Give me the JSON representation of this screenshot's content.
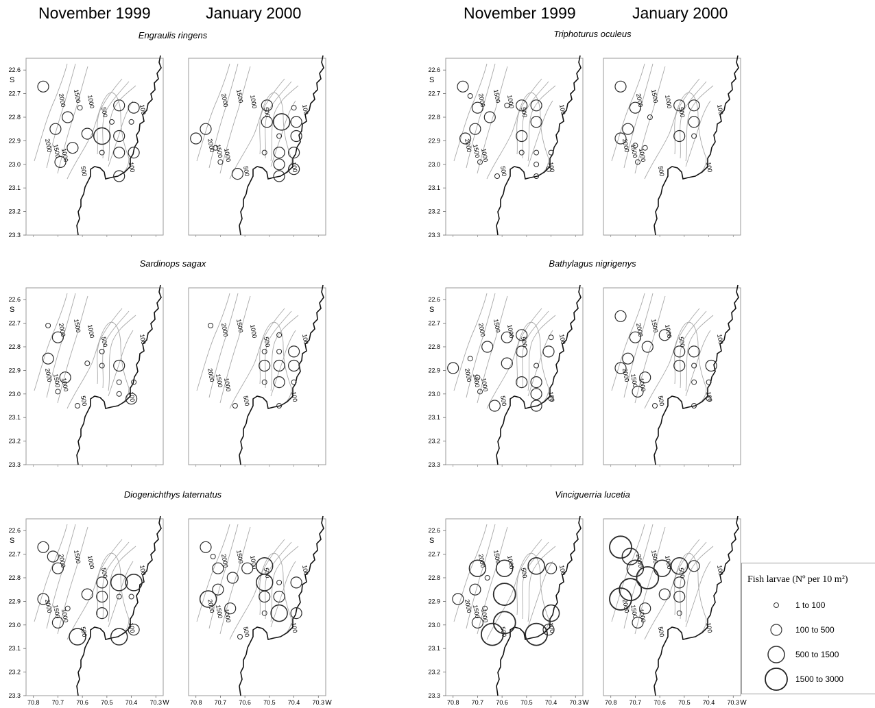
{
  "headers": {
    "left_nov": "November 1999",
    "left_jan": "January 2000",
    "right_nov": "November 1999",
    "right_jan": "January 2000"
  },
  "axes": {
    "lat_unit": "S",
    "lon_unit": "W",
    "lat_ticks": [
      "22.6",
      "22.7",
      "22.8",
      "22.9",
      "23.0",
      "23.1",
      "23.2",
      "23.3"
    ],
    "lon_ticks": [
      "70.8",
      "70.7",
      "70.6",
      "70.5",
      "70.4",
      "70.3"
    ],
    "lat_range": [
      22.55,
      23.3
    ],
    "lon_range": [
      70.83,
      70.27
    ]
  },
  "isobaths": {
    "labels": [
      "2000",
      "1500",
      "1000",
      "500",
      "100"
    ]
  },
  "species": [
    {
      "name": "Engraulis ringens"
    },
    {
      "name": "Triphoturus oculeus"
    },
    {
      "name": "Sardinops sagax"
    },
    {
      "name": "Bathylagus nigrigenys"
    },
    {
      "name": "Diogenichthys laternatus"
    },
    {
      "name": "Vinciguerria lucetia"
    }
  ],
  "legend": {
    "title": "Fish larvae (Nº per 10 m²)",
    "classes": [
      {
        "class": 1,
        "label": "1  to  100"
      },
      {
        "class": 2,
        "label": "100  to  500"
      },
      {
        "class": 3,
        "label": "500  to  1500"
      },
      {
        "class": 4,
        "label": "1500  to  3000"
      }
    ]
  },
  "chart_data": [
    {
      "type": "scatter",
      "species": "Engraulis ringens",
      "survey": "November 1999",
      "points": [
        [
          70.76,
          22.67,
          2
        ],
        [
          70.71,
          22.85,
          2
        ],
        [
          70.66,
          22.8,
          2
        ],
        [
          70.69,
          22.99,
          2
        ],
        [
          70.64,
          22.93,
          2
        ],
        [
          70.58,
          22.87,
          2
        ],
        [
          70.61,
          22.76,
          1
        ],
        [
          70.52,
          22.88,
          3
        ],
        [
          70.52,
          22.95,
          1
        ],
        [
          70.45,
          22.75,
          2
        ],
        [
          70.39,
          22.76,
          2
        ],
        [
          70.45,
          22.88,
          2
        ],
        [
          70.45,
          22.95,
          2
        ],
        [
          70.39,
          22.95,
          2
        ],
        [
          70.45,
          23.05,
          2
        ],
        [
          70.4,
          22.82,
          1
        ],
        [
          70.48,
          22.82,
          1
        ]
      ]
    },
    {
      "type": "scatter",
      "species": "Engraulis ringens",
      "survey": "January 2000",
      "points": [
        [
          70.8,
          22.89,
          2
        ],
        [
          70.76,
          22.85,
          2
        ],
        [
          70.72,
          22.93,
          1
        ],
        [
          70.7,
          22.99,
          1
        ],
        [
          70.63,
          23.04,
          2
        ],
        [
          70.51,
          22.75,
          2
        ],
        [
          70.51,
          22.82,
          2
        ],
        [
          70.45,
          22.82,
          3
        ],
        [
          70.4,
          22.76,
          1
        ],
        [
          70.39,
          22.82,
          2
        ],
        [
          70.39,
          22.88,
          2
        ],
        [
          70.46,
          22.95,
          2
        ],
        [
          70.46,
          23.0,
          2
        ],
        [
          70.4,
          22.95,
          2
        ],
        [
          70.4,
          23.02,
          2
        ],
        [
          70.46,
          23.05,
          2
        ],
        [
          70.52,
          22.95,
          1
        ],
        [
          70.46,
          22.88,
          1
        ]
      ]
    },
    {
      "type": "scatter",
      "species": "Triphoturus oculeus",
      "survey": "November 1999",
      "points": [
        [
          70.76,
          22.67,
          2
        ],
        [
          70.73,
          22.71,
          1
        ],
        [
          70.7,
          22.76,
          2
        ],
        [
          70.65,
          22.8,
          2
        ],
        [
          70.71,
          22.85,
          2
        ],
        [
          70.75,
          22.89,
          2
        ],
        [
          70.69,
          22.99,
          1
        ],
        [
          70.62,
          23.05,
          1
        ],
        [
          70.58,
          22.75,
          1
        ],
        [
          70.52,
          22.75,
          2
        ],
        [
          70.46,
          22.75,
          2
        ],
        [
          70.46,
          22.82,
          2
        ],
        [
          70.52,
          22.88,
          2
        ],
        [
          70.52,
          22.95,
          1
        ],
        [
          70.46,
          22.95,
          1
        ],
        [
          70.4,
          22.95,
          1
        ],
        [
          70.46,
          23.0,
          1
        ],
        [
          70.41,
          23.02,
          1
        ],
        [
          70.46,
          23.05,
          1
        ]
      ]
    },
    {
      "type": "scatter",
      "species": "Triphoturus oculeus",
      "survey": "January 2000",
      "points": [
        [
          70.76,
          22.67,
          2
        ],
        [
          70.7,
          22.76,
          2
        ],
        [
          70.73,
          22.85,
          2
        ],
        [
          70.76,
          22.89,
          2
        ],
        [
          70.7,
          22.92,
          1
        ],
        [
          70.66,
          22.93,
          1
        ],
        [
          70.69,
          22.99,
          1
        ],
        [
          70.64,
          22.8,
          1
        ],
        [
          70.52,
          22.75,
          2
        ],
        [
          70.46,
          22.75,
          2
        ],
        [
          70.46,
          22.82,
          2
        ],
        [
          70.52,
          22.88,
          2
        ],
        [
          70.46,
          22.88,
          1
        ]
      ]
    },
    {
      "type": "scatter",
      "species": "Sardinops sagax",
      "survey": "November 1999",
      "points": [
        [
          70.74,
          22.71,
          1
        ],
        [
          70.7,
          22.76,
          2
        ],
        [
          70.74,
          22.85,
          2
        ],
        [
          70.67,
          22.93,
          2
        ],
        [
          70.7,
          22.99,
          1
        ],
        [
          70.62,
          23.05,
          1
        ],
        [
          70.58,
          22.87,
          1
        ],
        [
          70.52,
          22.82,
          1
        ],
        [
          70.52,
          22.88,
          1
        ],
        [
          70.45,
          22.88,
          2
        ],
        [
          70.45,
          23.0,
          1
        ],
        [
          70.4,
          23.02,
          2
        ],
        [
          70.45,
          22.95,
          1
        ],
        [
          70.39,
          22.95,
          1
        ]
      ]
    },
    {
      "type": "scatter",
      "species": "Sardinops sagax",
      "survey": "January 2000",
      "points": [
        [
          70.74,
          22.71,
          1
        ],
        [
          70.64,
          23.05,
          1
        ],
        [
          70.52,
          22.88,
          2
        ],
        [
          70.46,
          22.88,
          2
        ],
        [
          70.4,
          22.88,
          2
        ],
        [
          70.4,
          22.82,
          2
        ],
        [
          70.46,
          22.95,
          2
        ],
        [
          70.52,
          22.95,
          1
        ],
        [
          70.4,
          22.95,
          1
        ],
        [
          70.46,
          22.75,
          1
        ],
        [
          70.46,
          23.05,
          1
        ],
        [
          70.46,
          22.82,
          1
        ],
        [
          70.52,
          22.82,
          1
        ]
      ]
    },
    {
      "type": "scatter",
      "species": "Bathylagus nigrigenys",
      "survey": "November 1999",
      "points": [
        [
          70.8,
          22.89,
          2
        ],
        [
          70.73,
          22.85,
          1
        ],
        [
          70.7,
          22.93,
          1
        ],
        [
          70.69,
          22.99,
          1
        ],
        [
          70.66,
          22.8,
          2
        ],
        [
          70.63,
          23.05,
          2
        ],
        [
          70.58,
          22.87,
          2
        ],
        [
          70.58,
          22.76,
          2
        ],
        [
          70.52,
          22.75,
          2
        ],
        [
          70.52,
          22.82,
          2
        ],
        [
          70.52,
          22.95,
          2
        ],
        [
          70.46,
          22.95,
          2
        ],
        [
          70.46,
          23.0,
          2
        ],
        [
          70.46,
          23.05,
          2
        ],
        [
          70.41,
          22.82,
          2
        ],
        [
          70.4,
          23.02,
          1
        ],
        [
          70.4,
          22.76,
          1
        ],
        [
          70.46,
          22.88,
          1
        ]
      ]
    },
    {
      "type": "scatter",
      "species": "Bathylagus nigrigenys",
      "survey": "January 2000",
      "points": [
        [
          70.76,
          22.67,
          2
        ],
        [
          70.7,
          22.76,
          2
        ],
        [
          70.65,
          22.8,
          2
        ],
        [
          70.73,
          22.85,
          2
        ],
        [
          70.76,
          22.89,
          2
        ],
        [
          70.66,
          22.93,
          2
        ],
        [
          70.69,
          22.99,
          2
        ],
        [
          70.62,
          23.05,
          1
        ],
        [
          70.58,
          22.75,
          2
        ],
        [
          70.52,
          22.82,
          2
        ],
        [
          70.52,
          22.88,
          2
        ],
        [
          70.46,
          22.82,
          2
        ],
        [
          70.39,
          22.88,
          2
        ],
        [
          70.46,
          22.95,
          1
        ],
        [
          70.4,
          22.95,
          1
        ],
        [
          70.4,
          23.02,
          1
        ],
        [
          70.46,
          23.05,
          1
        ],
        [
          70.46,
          22.88,
          1
        ]
      ]
    },
    {
      "type": "scatter",
      "species": "Diogenichthys laternatus",
      "survey": "November 1999",
      "points": [
        [
          70.76,
          22.67,
          2
        ],
        [
          70.72,
          22.71,
          2
        ],
        [
          70.7,
          22.76,
          2
        ],
        [
          70.76,
          22.89,
          2
        ],
        [
          70.7,
          22.99,
          2
        ],
        [
          70.66,
          22.93,
          1
        ],
        [
          70.58,
          22.87,
          2
        ],
        [
          70.52,
          22.82,
          2
        ],
        [
          70.52,
          22.88,
          2
        ],
        [
          70.52,
          22.95,
          2
        ],
        [
          70.45,
          22.82,
          3
        ],
        [
          70.39,
          22.82,
          3
        ],
        [
          70.45,
          22.88,
          1
        ],
        [
          70.4,
          22.88,
          1
        ],
        [
          70.39,
          23.02,
          2
        ],
        [
          70.45,
          23.05,
          3
        ],
        [
          70.62,
          23.05,
          3
        ]
      ]
    },
    {
      "type": "scatter",
      "species": "Diogenichthys laternatus",
      "survey": "January 2000",
      "points": [
        [
          70.76,
          22.67,
          2
        ],
        [
          70.73,
          22.71,
          1
        ],
        [
          70.71,
          22.76,
          2
        ],
        [
          70.75,
          22.89,
          3
        ],
        [
          70.71,
          22.85,
          2
        ],
        [
          70.66,
          22.93,
          2
        ],
        [
          70.65,
          22.8,
          2
        ],
        [
          70.59,
          22.76,
          2
        ],
        [
          70.52,
          22.75,
          3
        ],
        [
          70.52,
          22.82,
          3
        ],
        [
          70.46,
          22.88,
          2
        ],
        [
          70.52,
          22.88,
          2
        ],
        [
          70.46,
          22.95,
          3
        ],
        [
          70.39,
          22.95,
          2
        ],
        [
          70.39,
          22.82,
          2
        ],
        [
          70.52,
          22.95,
          1
        ],
        [
          70.62,
          23.05,
          1
        ],
        [
          70.46,
          22.82,
          1
        ]
      ]
    },
    {
      "type": "scatter",
      "species": "Vinciguerria lucetia",
      "survey": "November 1999",
      "points": [
        [
          70.78,
          22.89,
          2
        ],
        [
          70.71,
          22.85,
          2
        ],
        [
          70.7,
          22.76,
          3
        ],
        [
          70.66,
          22.8,
          1
        ],
        [
          70.7,
          22.99,
          2
        ],
        [
          70.67,
          22.93,
          1
        ],
        [
          70.64,
          23.04,
          4
        ],
        [
          70.59,
          22.99,
          4
        ],
        [
          70.59,
          22.87,
          4
        ],
        [
          70.59,
          22.76,
          3
        ],
        [
          70.46,
          22.75,
          3
        ],
        [
          70.4,
          22.76,
          2
        ],
        [
          70.4,
          22.95,
          3
        ],
        [
          70.41,
          23.02,
          2
        ],
        [
          70.46,
          23.04,
          4
        ]
      ]
    },
    {
      "type": "scatter",
      "species": "Vinciguerria lucetia",
      "survey": "January 2000",
      "points": [
        [
          70.76,
          22.67,
          4
        ],
        [
          70.72,
          22.71,
          3
        ],
        [
          70.7,
          22.76,
          3
        ],
        [
          70.76,
          22.89,
          4
        ],
        [
          70.72,
          22.85,
          4
        ],
        [
          70.65,
          22.8,
          4
        ],
        [
          70.59,
          22.76,
          3
        ],
        [
          70.52,
          22.75,
          3
        ],
        [
          70.46,
          22.75,
          2
        ],
        [
          70.58,
          22.87,
          2
        ],
        [
          70.66,
          22.93,
          2
        ],
        [
          70.69,
          22.99,
          2
        ],
        [
          70.52,
          22.82,
          2
        ],
        [
          70.52,
          22.88,
          2
        ],
        [
          70.52,
          22.95,
          1
        ]
      ]
    }
  ]
}
